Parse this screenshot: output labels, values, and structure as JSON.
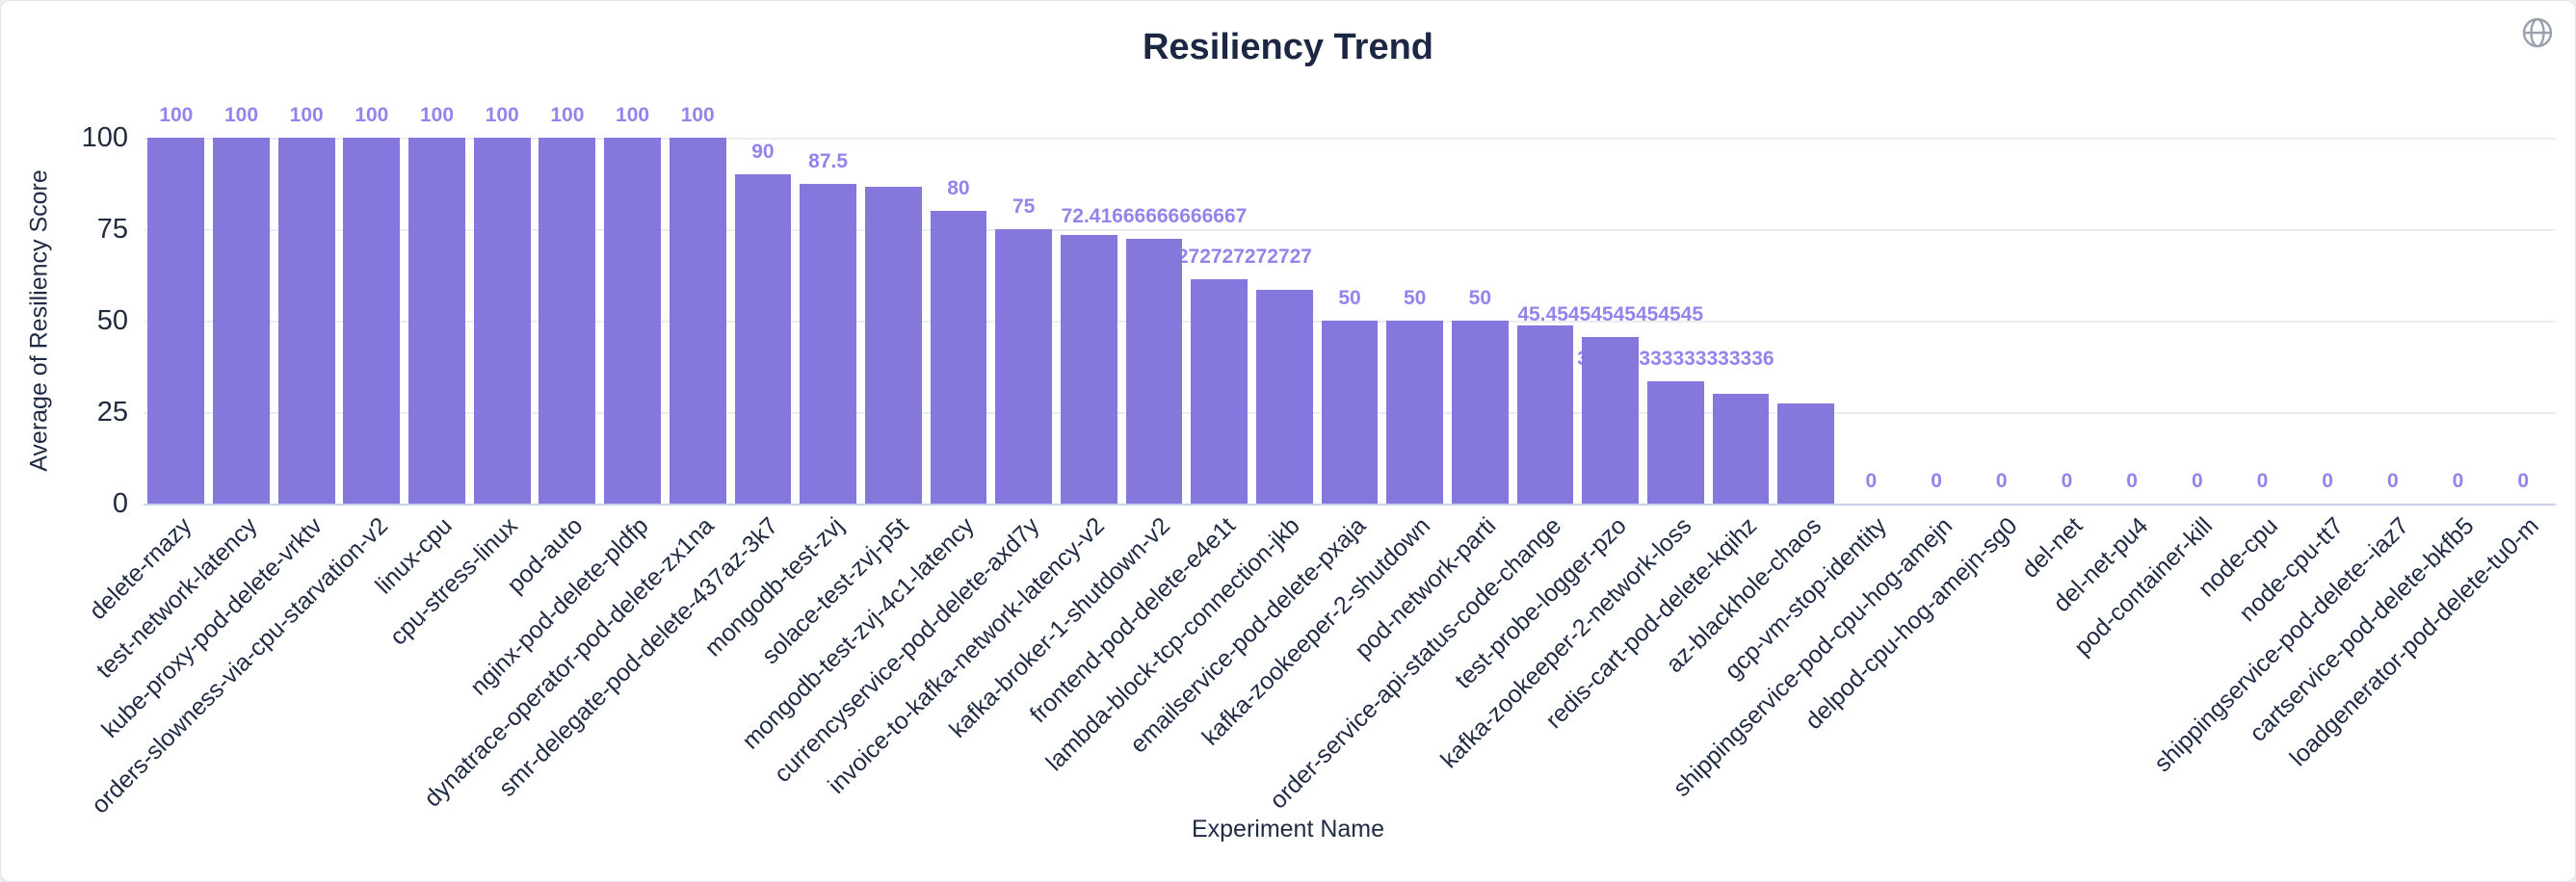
{
  "header": {
    "title": "Resiliency Trend",
    "toolbar": {
      "globe_icon": "globe-icon",
      "globe_color": "#98a1ad"
    }
  },
  "chart_data": {
    "type": "bar",
    "title": "Resiliency Trend",
    "xlabel": "Experiment Name",
    "ylabel": "Average of Resiliency Score",
    "ylim": [
      0,
      100
    ],
    "yticks": [
      0,
      25,
      50,
      75,
      100
    ],
    "grid": true,
    "legend": "none",
    "bar_color": "#8478DC",
    "value_label_color": "#9184EC",
    "axis_text_color": "#1f2a44",
    "categories": [
      "delete-rnazy",
      "test-network-latency",
      "kube-proxy-pod-delete-vrktv",
      "orders-slowness-via-cpu-starvation-v2",
      "linux-cpu",
      "cpu-stress-linux",
      "pod-auto",
      "nginx-pod-delete-pldfp",
      "dynatrace-operator-pod-delete-zx1na",
      "smr-delegate-pod-delete-437az-3k7",
      "mongodb-test-zvj",
      "solace-test-zvj-p5t",
      "mongodb-test-zvj-4c1-latency",
      "currencyservice-pod-delete-axd7y",
      "invoice-to-kafka-network-latency-v2",
      "kafka-broker-1-shutdown-v2",
      "frontend-pod-delete-e4e1t",
      "lambda-block-tcp-connection-jkb",
      "emailservice-pod-delete-pxaja",
      "kafka-zookeeper-2-shutdown",
      "pod-network-parti",
      "order-service-api-status-code-change",
      "test-probe-logger-pzo",
      "kafka-zookeeper-2-network-loss",
      "redis-cart-pod-delete-kqihz",
      "az-blackhole-chaos",
      "gcp-vm-stop-identity",
      "shippingservice-pod-cpu-hog-amejn",
      "delpod-cpu-hog-amejn-sg0",
      "del-net",
      "del-net-pu4",
      "pod-container-kill",
      "node-cpu",
      "node-cpu-tt7",
      "shippingservice-pod-delete--iaz7",
      "cartservice-pod-delete-bkfb5",
      "loadgenerator-pod-delete-tu0-m"
    ],
    "values": [
      100,
      100,
      100,
      100,
      100,
      100,
      100,
      100,
      100,
      90,
      87.5,
      86.66666666666667,
      80,
      75,
      73.33333333333333,
      72.41666666666667,
      61.27272727272727,
      58.333333333333336,
      50,
      50,
      50,
      48.75,
      45.45454545454545,
      33.333333333333336,
      30,
      27.27272727272727,
      0,
      0,
      0,
      0,
      0,
      0,
      0,
      0,
      0,
      0,
      0
    ],
    "label_visible": [
      true,
      true,
      true,
      true,
      true,
      true,
      true,
      true,
      true,
      true,
      true,
      false,
      true,
      true,
      false,
      true,
      true,
      false,
      true,
      true,
      true,
      false,
      true,
      true,
      false,
      false,
      true,
      true,
      true,
      true,
      true,
      true,
      true,
      true,
      true,
      true,
      true
    ]
  }
}
